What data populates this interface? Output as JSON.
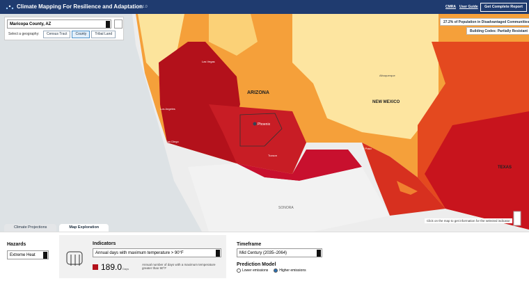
{
  "header": {
    "title": "Climate Mapping For Resilience and Adaptation",
    "version": "v1.1.0",
    "links": [
      "CMRA",
      "User Guide"
    ],
    "button": "Get Complete Report"
  },
  "search": {
    "value": "Maricopa County, AZ",
    "geography_label": "Select a geography:",
    "geographies": [
      "Census Tract",
      "County",
      "Tribal Land"
    ],
    "active_geography": 1
  },
  "badges": [
    "27.2% of Population in Disadvantaged Communities",
    "Building Codes: Partially Resistant"
  ],
  "map": {
    "labels": [
      "ARIZONA",
      "NEW MEXICO",
      "TEXAS",
      "SONORA",
      "Phoenix",
      "Las Vegas",
      "Los Angeles",
      "San Diego",
      "Tucson",
      "Albuquerque",
      "El Paso"
    ],
    "hint": "Click on the map to get information for the selected indicator"
  },
  "tabs": {
    "items": [
      "Climate Projections",
      "Map Exploration"
    ],
    "active": 1
  },
  "panel": {
    "hazards_label": "Hazards",
    "hazard": "Extreme Heat",
    "indicators_label": "Indicators",
    "indicator": "Annual days with maximum temperature > 90°F",
    "value": "189.0",
    "unit": "Days",
    "description": "Annual number of days with a maximum temperature greater than 90°F",
    "timeframe_label": "Timeframe",
    "timeframe": "Mid Century (2035–2064)",
    "model_label": "Prediction Model",
    "models": [
      "Lower emissions",
      "Higher emissions"
    ],
    "active_model": 1
  }
}
